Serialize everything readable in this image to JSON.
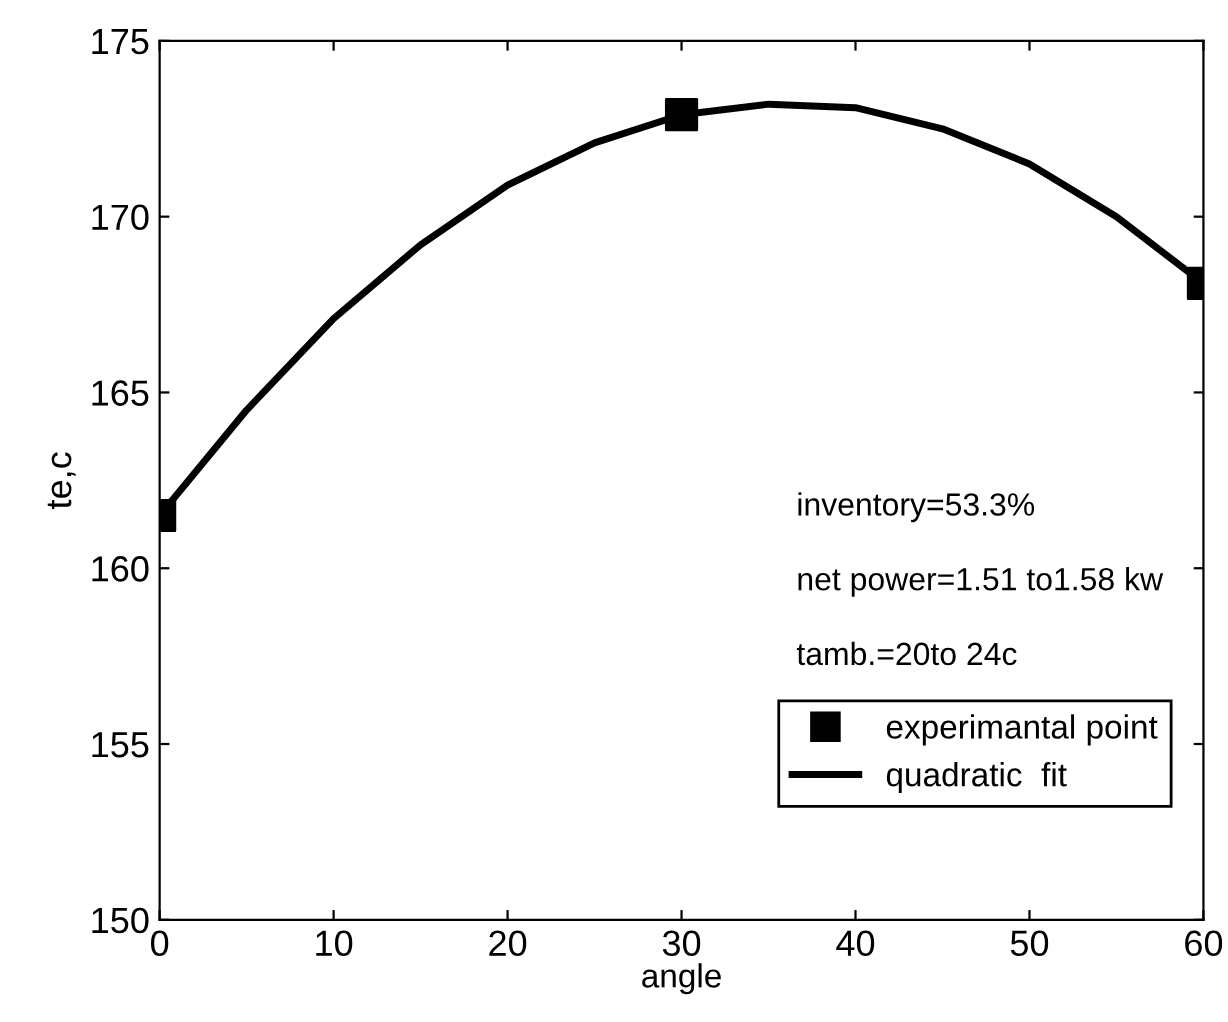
{
  "chart_data": {
    "type": "scatter",
    "xlabel": "angle",
    "ylabel": "te,c",
    "xlim": [
      0,
      60
    ],
    "xticks": [
      0,
      10,
      20,
      30,
      40,
      50,
      60
    ],
    "ylim": [
      150,
      175
    ],
    "yticks": [
      150,
      155,
      160,
      165,
      170,
      175
    ],
    "grid": false,
    "legend": "bottom right",
    "annotations": [
      "inventory=53.3%",
      "net power=1.51 to1.58 kw",
      "tamb.=20to 24c"
    ],
    "series": [
      {
        "name": "experimantal point",
        "marker": "square",
        "color": "#000000",
        "x": [
          0,
          30,
          60
        ],
        "values": [
          161.5,
          172.9,
          168.1
        ]
      },
      {
        "name": "quadratic  fit",
        "type": "line",
        "marker": "none",
        "line_style": "solid",
        "color": "#000000",
        "x": [
          0,
          5,
          10,
          15,
          20,
          25,
          30,
          35,
          40,
          45,
          50,
          55,
          60
        ],
        "values": [
          161.5,
          164.5,
          167.1,
          169.2,
          170.9,
          172.1,
          172.9,
          173.2,
          173.1,
          172.5,
          171.5,
          170.0,
          168.1
        ]
      }
    ]
  }
}
